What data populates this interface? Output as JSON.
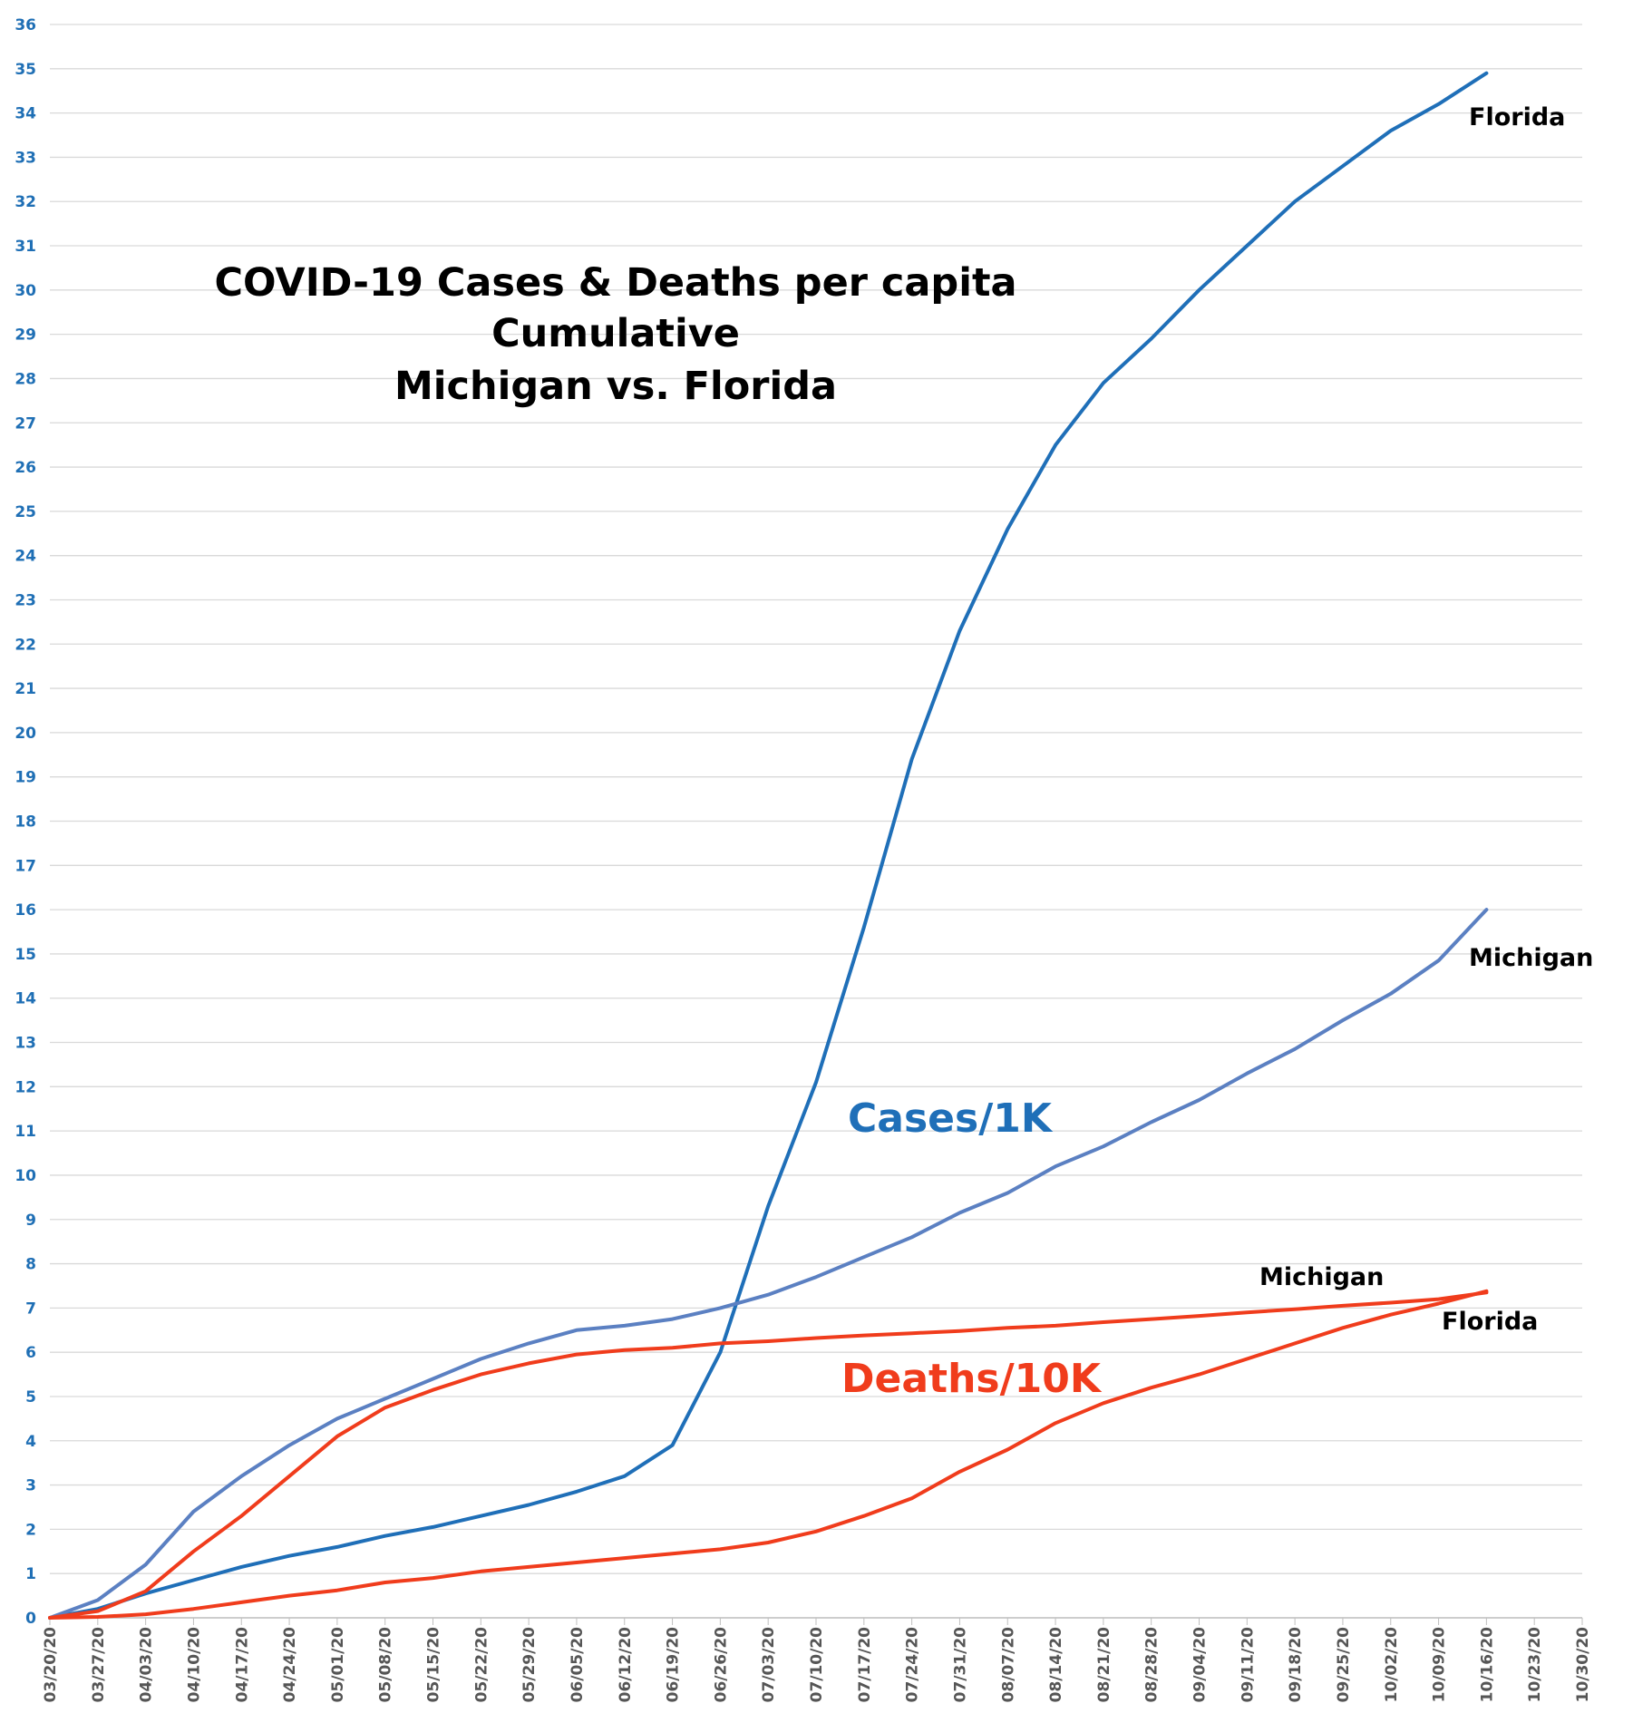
{
  "chart_data": {
    "type": "line",
    "title": [
      "COVID-19 Cases & Deaths per capita",
      "Cumulative",
      "Michigan vs. Florida"
    ],
    "xlabel": "",
    "ylabel": "",
    "ylim": [
      0,
      36
    ],
    "yticks": [
      "0",
      "1",
      "2",
      "3",
      "4",
      "5",
      "6",
      "7",
      "8",
      "9",
      "10",
      "11",
      "12",
      "13",
      "14",
      "15",
      "16",
      "17",
      "18",
      "19",
      "20",
      "21",
      "22",
      "23",
      "24",
      "25",
      "26",
      "27",
      "28",
      "29",
      "30",
      "31",
      "32",
      "33",
      "34",
      "35",
      "36"
    ],
    "grid": true,
    "x_tick_labels": [
      "03/20/20",
      "03/27/20",
      "04/03/20",
      "04/10/20",
      "04/17/20",
      "04/24/20",
      "05/01/20",
      "05/08/20",
      "05/15/20",
      "05/22/20",
      "05/29/20",
      "06/05/20",
      "06/12/20",
      "06/19/20",
      "06/26/20",
      "07/03/20",
      "07/10/20",
      "07/17/20",
      "07/24/20",
      "07/31/20",
      "08/07/20",
      "08/14/20",
      "08/21/20",
      "08/28/20",
      "09/04/20",
      "09/11/20",
      "09/18/20",
      "09/25/20",
      "10/02/20",
      "10/09/20",
      "10/16/20",
      "10/23/20",
      "10/30/20"
    ],
    "x": [
      "03/20/20",
      "03/27/20",
      "04/03/20",
      "04/10/20",
      "04/17/20",
      "04/24/20",
      "05/01/20",
      "05/08/20",
      "05/15/20",
      "05/22/20",
      "05/29/20",
      "06/05/20",
      "06/12/20",
      "06/19/20",
      "06/26/20",
      "07/03/20",
      "07/10/20",
      "07/17/20",
      "07/24/20",
      "07/31/20",
      "08/07/20",
      "08/14/20",
      "08/21/20",
      "08/28/20",
      "09/04/20",
      "09/11/20",
      "09/18/20",
      "09/25/20",
      "10/02/20",
      "10/09/20",
      "10/16/20"
    ],
    "series": [
      {
        "name": "Florida",
        "group": "Cases/1K",
        "color": "#1f6fb8",
        "values": [
          0,
          0.2,
          0.55,
          0.85,
          1.15,
          1.4,
          1.6,
          1.85,
          2.05,
          2.3,
          2.55,
          2.85,
          3.2,
          3.9,
          6.0,
          9.3,
          12.1,
          15.6,
          19.4,
          22.3,
          24.6,
          26.5,
          27.9,
          28.9,
          30.0,
          31.0,
          32.0,
          32.8,
          33.6,
          34.2,
          34.9
        ]
      },
      {
        "name": "Michigan",
        "group": "Cases/1K",
        "color": "#5b80c2",
        "values": [
          0,
          0.4,
          1.2,
          2.4,
          3.2,
          3.9,
          4.5,
          4.95,
          5.4,
          5.85,
          6.2,
          6.5,
          6.6,
          6.75,
          7.0,
          7.3,
          7.7,
          8.15,
          8.6,
          9.15,
          9.6,
          10.2,
          10.65,
          11.2,
          11.7,
          12.3,
          12.85,
          13.5,
          14.1,
          14.85,
          16.0
        ]
      },
      {
        "name": "Michigan",
        "group": "Deaths/10K",
        "color": "#f03c1c",
        "values": [
          0,
          0.15,
          0.6,
          1.5,
          2.3,
          3.2,
          4.1,
          4.75,
          5.15,
          5.5,
          5.75,
          5.95,
          6.05,
          6.1,
          6.2,
          6.25,
          6.32,
          6.38,
          6.43,
          6.48,
          6.55,
          6.6,
          6.68,
          6.75,
          6.82,
          6.9,
          6.97,
          7.05,
          7.12,
          7.2,
          7.35
        ]
      },
      {
        "name": "Florida",
        "group": "Deaths/10K",
        "color": "#f03c1c",
        "values": [
          0,
          0.02,
          0.08,
          0.2,
          0.35,
          0.5,
          0.62,
          0.8,
          0.9,
          1.05,
          1.15,
          1.25,
          1.35,
          1.45,
          1.55,
          1.7,
          1.95,
          2.3,
          2.7,
          3.3,
          3.8,
          4.4,
          4.85,
          5.2,
          5.5,
          5.85,
          6.2,
          6.55,
          6.85,
          7.1,
          7.38
        ]
      }
    ],
    "annotations": {
      "florida_cases": "Florida",
      "michigan_cases": "Michigan",
      "michigan_deaths": "Michigan",
      "florida_deaths": "Florida",
      "cases_group": "Cases/1K",
      "deaths_group": "Deaths/10K"
    },
    "colors": {
      "cases_text": "#1f6fb8",
      "deaths_text": "#f03c1c"
    }
  }
}
